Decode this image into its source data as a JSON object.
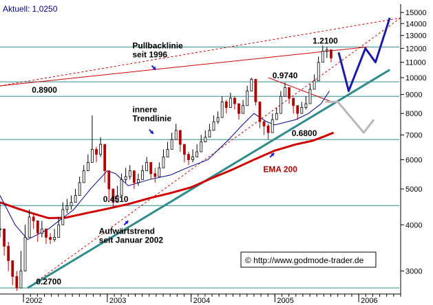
{
  "header": {
    "current_price": "Aktuell: 1,0250"
  },
  "copyright": {
    "text": "© http://www.godmode-trader.de"
  },
  "chart_data": {
    "type": "candlestick",
    "y_scale": "log",
    "ylim": [
      2600,
      15800
    ],
    "xlim": [
      2001.72,
      2006.5
    ],
    "y_ticks": [
      {
        "value": 15000,
        "label": "15000"
      },
      {
        "value": 14000,
        "label": "14000"
      },
      {
        "value": 13000,
        "label": "13000"
      },
      {
        "value": 12000,
        "label": "12000"
      },
      {
        "value": 11000,
        "label": "11000"
      },
      {
        "value": 10000,
        "label": "10000"
      },
      {
        "value": 9000,
        "label": "9000"
      },
      {
        "value": 8000,
        "label": "8000"
      },
      {
        "value": 7000,
        "label": "7000"
      },
      {
        "value": 6000,
        "label": "6000"
      },
      {
        "value": 5000,
        "label": "5000"
      },
      {
        "value": 4000,
        "label": "4000"
      },
      {
        "value": 3000,
        "label": "3000"
      }
    ],
    "x_ticks": [
      {
        "value": 2002,
        "label": "2002"
      },
      {
        "value": 2003,
        "label": "2003"
      },
      {
        "value": 2004,
        "label": "2004"
      },
      {
        "value": 2005,
        "label": "2005"
      },
      {
        "value": 2006,
        "label": "2006"
      }
    ],
    "levels": [
      {
        "value": 8900,
        "label": "0.8900",
        "label_x": 2002.1
      },
      {
        "value": 9740,
        "label": "0.9740",
        "label_x": 2004.97
      },
      {
        "value": 12100,
        "label": "1.2100",
        "label_x": 2005.45
      },
      {
        "value": 6800,
        "label": "0.6800",
        "label_x": 2005.2
      },
      {
        "value": 4510,
        "label": "0.4510",
        "label_x": 2002.95
      },
      {
        "value": 2700,
        "label": "0.2700",
        "label_x": 2002.15
      }
    ],
    "annotations": [
      {
        "lines": [
          "Pullbacklinie",
          "seit 1996"
        ],
        "x": 2003.3,
        "y": 12000,
        "arrow_to": [
          2003.58,
          10500
        ]
      },
      {
        "lines": [
          "innere",
          "Trendlinie"
        ],
        "x": 2003.3,
        "y": 8050,
        "arrow_to": [
          2003.55,
          7050
        ]
      },
      {
        "lines": [
          "Aufwärtstrend",
          "seit Januar 2002"
        ],
        "x": 2002.9,
        "y": 3780,
        "arrow_to": [
          2003.25,
          4100
        ]
      },
      {
        "lines": [
          "EMA 200"
        ],
        "x": 2004.86,
        "y": 5550,
        "arrow_to": [
          2004.99,
          6250
        ]
      }
    ],
    "trendlines": [
      {
        "name": "pullback",
        "x": [
          2001.72,
          2006.1
        ],
        "y": [
          9500,
          12100
        ]
      },
      {
        "name": "pullback-ext",
        "x": [
          2001.72,
          2006.5
        ],
        "y": [
          9500,
          14500
        ],
        "dashed": true
      },
      {
        "name": "inner-trend",
        "x": [
          2002.05,
          2006.5
        ],
        "y": [
          2700,
          14500
        ],
        "dashed": true
      },
      {
        "name": "uptrend",
        "x": [
          2002.05,
          2006.37
        ],
        "y": [
          2700,
          10500
        ]
      },
      {
        "name": "wedge-top",
        "x": [
          2004.92,
          2005.68
        ],
        "y": [
          10000,
          8600
        ]
      }
    ],
    "projections": [
      {
        "name": "bullish",
        "x": [
          2005.76,
          2005.88,
          2006.08,
          2006.2,
          2006.37
        ],
        "y": [
          11700,
          9200,
          12000,
          11000,
          14500
        ]
      },
      {
        "name": "bearish",
        "x": [
          2005.6,
          2005.75,
          2006.06,
          2006.18
        ],
        "y": [
          8600,
          8600,
          7100,
          7700
        ]
      }
    ],
    "ema200": {
      "x": [
        2001.72,
        2001.9,
        2002.1,
        2002.3,
        2002.5,
        2002.75,
        2003.0,
        2003.25,
        2003.5,
        2003.75,
        2004.0,
        2004.25,
        2004.5,
        2004.75,
        2005.0,
        2005.25,
        2005.45,
        2005.6,
        2005.7
      ],
      "y": [
        4600,
        4450,
        4300,
        4170,
        4180,
        4300,
        4420,
        4550,
        4720,
        4870,
        5050,
        5350,
        5650,
        6000,
        6350,
        6600,
        6750,
        6950,
        7100
      ]
    },
    "sma_short": {
      "x": [
        2001.72,
        2001.9,
        2002.05,
        2002.3,
        2002.6,
        2002.8,
        2003.0,
        2003.1,
        2003.25,
        2003.5,
        2003.75,
        2003.95,
        2004.2,
        2004.45,
        2004.6,
        2004.75,
        2004.9,
        2005.0,
        2005.25,
        2005.4,
        2005.55,
        2005.65
      ],
      "y": [
        4800,
        4000,
        3650,
        3900,
        4400,
        5000,
        5600,
        5500,
        5100,
        5300,
        5450,
        5700,
        6000,
        6800,
        7400,
        8000,
        7600,
        7450,
        7700,
        8000,
        8500,
        9200
      ]
    },
    "ohlc": {
      "x": [
        2001.72,
        2001.77,
        2001.82,
        2001.87,
        2001.92,
        2001.97,
        2002.02,
        2002.07,
        2002.12,
        2002.17,
        2002.22,
        2002.27,
        2002.32,
        2002.37,
        2002.42,
        2002.47,
        2002.52,
        2002.57,
        2002.62,
        2002.67,
        2002.72,
        2002.77,
        2002.82,
        2002.87,
        2002.92,
        2002.97,
        2003.02,
        2003.07,
        2003.12,
        2003.17,
        2003.22,
        2003.27,
        2003.32,
        2003.37,
        2003.42,
        2003.47,
        2003.52,
        2003.57,
        2003.62,
        2003.67,
        2003.72,
        2003.77,
        2003.82,
        2003.87,
        2003.92,
        2003.97,
        2004.02,
        2004.07,
        2004.12,
        2004.17,
        2004.22,
        2004.27,
        2004.32,
        2004.37,
        2004.42,
        2004.47,
        2004.52,
        2004.57,
        2004.62,
        2004.67,
        2004.72,
        2004.77,
        2004.82,
        2004.87,
        2004.92,
        2004.97,
        2005.02,
        2005.07,
        2005.12,
        2005.17,
        2005.22,
        2005.27,
        2005.32,
        2005.37,
        2005.42,
        2005.47,
        2005.52,
        2005.57,
        2005.62,
        2005.67
      ],
      "c": [
        3900,
        3500,
        3200,
        2900,
        2700,
        3000,
        3700,
        4200,
        4100,
        3800,
        3900,
        3700,
        3650,
        3700,
        4000,
        4400,
        4500,
        4600,
        4800,
        5200,
        5600,
        5900,
        6400,
        6200,
        6600,
        5600,
        5000,
        4600,
        4800,
        5300,
        5400,
        5600,
        5200,
        5300,
        5600,
        5900,
        5500,
        5400,
        5700,
        6100,
        6400,
        6800,
        7200,
        6600,
        6200,
        6000,
        6100,
        6300,
        6700,
        6900,
        7200,
        7600,
        7800,
        8600,
        8300,
        8800,
        8500,
        8000,
        8400,
        9200,
        9900,
        8600,
        7600,
        7400,
        7100,
        7700,
        8000,
        8900,
        9400,
        8800,
        8400,
        8000,
        8300,
        8500,
        9300,
        9800,
        11000,
        11800,
        11900,
        11300
      ],
      "hl": [
        [
          4600,
          3700
        ],
        [
          3900,
          3300
        ],
        [
          3600,
          3000
        ],
        [
          3200,
          2750
        ],
        [
          3000,
          2650
        ],
        [
          3400,
          2800
        ],
        [
          4000,
          3400
        ],
        [
          4400,
          3900
        ],
        [
          4300,
          3900
        ],
        [
          4000,
          3600
        ],
        [
          4100,
          3700
        ],
        [
          3900,
          3550
        ],
        [
          3800,
          3550
        ],
        [
          3900,
          3600
        ],
        [
          4200,
          3800
        ],
        [
          4600,
          4200
        ],
        [
          4700,
          4300
        ],
        [
          4800,
          4400
        ],
        [
          5000,
          4600
        ],
        [
          5400,
          4900
        ],
        [
          5800,
          5300
        ],
        [
          6200,
          5600
        ],
        [
          7900,
          5900
        ],
        [
          6500,
          5900
        ],
        [
          6900,
          6100
        ],
        [
          6000,
          5200
        ],
        [
          5300,
          4600
        ],
        [
          4900,
          4450
        ],
        [
          5100,
          4600
        ],
        [
          5500,
          5000
        ],
        [
          5700,
          5200
        ],
        [
          5800,
          5300
        ],
        [
          5500,
          5000
        ],
        [
          5500,
          5100
        ],
        [
          5800,
          5300
        ],
        [
          6100,
          5600
        ],
        [
          5800,
          5300
        ],
        [
          5700,
          5200
        ],
        [
          5900,
          5500
        ],
        [
          6400,
          5900
        ],
        [
          6700,
          6100
        ],
        [
          7100,
          6500
        ],
        [
          7500,
          6900
        ],
        [
          7000,
          6300
        ],
        [
          6500,
          5900
        ],
        [
          6300,
          5800
        ],
        [
          6400,
          5900
        ],
        [
          6600,
          6100
        ],
        [
          7000,
          6400
        ],
        [
          7200,
          6700
        ],
        [
          7500,
          7000
        ],
        [
          7900,
          7300
        ],
        [
          8100,
          7500
        ],
        [
          8900,
          8200
        ],
        [
          8700,
          8000
        ],
        [
          9100,
          8500
        ],
        [
          8900,
          8200
        ],
        [
          8400,
          7700
        ],
        [
          8700,
          8100
        ],
        [
          9500,
          8800
        ],
        [
          10000,
          9400
        ],
        [
          9200,
          8400
        ],
        [
          8100,
          7300
        ],
        [
          7700,
          7000
        ],
        [
          7500,
          6800
        ],
        [
          8000,
          7300
        ],
        [
          8300,
          7700
        ],
        [
          9200,
          8500
        ],
        [
          9700,
          9000
        ],
        [
          9300,
          8500
        ],
        [
          8800,
          8000
        ],
        [
          8400,
          7700
        ],
        [
          8600,
          8000
        ],
        [
          8900,
          8200
        ],
        [
          9600,
          9000
        ],
        [
          10200,
          9500
        ],
        [
          11400,
          10500
        ],
        [
          12200,
          11300
        ],
        [
          12100,
          11300
        ],
        [
          11800,
          11000
        ]
      ]
    }
  }
}
